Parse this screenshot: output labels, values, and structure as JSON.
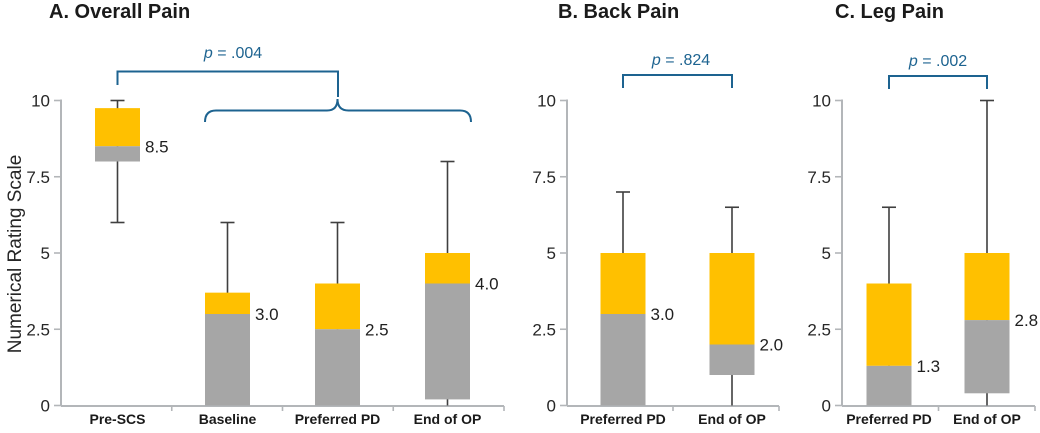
{
  "figure": {
    "y_axis_title": "Numerical Rating Scale",
    "y_ticks": [
      "10",
      "7.5",
      "5",
      "2.5",
      "0"
    ],
    "y_tick_values": [
      10,
      7.5,
      5,
      2.5,
      0
    ],
    "ylim": [
      0,
      10
    ]
  },
  "colors": {
    "box_upper": "#FFC000",
    "box_lower": "#A6A6A6",
    "whisker": "#3f3f3f",
    "axis": "#b3b6b9",
    "bracket": "#1d6390",
    "text": "#1f1f1f"
  },
  "chart_data": [
    {
      "type": "box",
      "panel_label": "A",
      "title": "A. Overall Pain",
      "p_text": {
        "var": "p",
        "rest": " = .004"
      },
      "categories": [
        "Pre-SCS",
        "Baseline",
        "Preferred PD",
        "End of OP"
      ],
      "ylabel": "Numerical Rating Scale",
      "ylim": [
        0,
        10
      ],
      "boxes": [
        {
          "category": "Pre-SCS",
          "whisker_low": 6.0,
          "box_low": 8.0,
          "median": 8.5,
          "box_high": 9.75,
          "whisker_high": 10.0,
          "median_label": "8.5"
        },
        {
          "category": "Baseline",
          "box_low": 0,
          "median": 3.0,
          "box_high": 3.7,
          "whisker_high": 6.0,
          "median_label": "3.0"
        },
        {
          "category": "Preferred PD",
          "box_low": 0,
          "median": 2.5,
          "box_high": 4.0,
          "whisker_high": 6.0,
          "median_label": "2.5"
        },
        {
          "category": "End of OP",
          "whisker_low": 0,
          "box_low": 0.2,
          "median": 4.0,
          "box_high": 5.0,
          "whisker_high": 8.0,
          "median_label": "4.0"
        }
      ]
    },
    {
      "type": "box",
      "panel_label": "B",
      "title": "B. Back Pain",
      "p_text": {
        "var": "p",
        "rest": " = .824"
      },
      "categories": [
        "Preferred PD",
        "End of OP"
      ],
      "ylim": [
        0,
        10
      ],
      "boxes": [
        {
          "category": "Preferred PD",
          "box_low": 0,
          "median": 3.0,
          "box_high": 5.0,
          "whisker_high": 7.0,
          "median_label": "3.0"
        },
        {
          "category": "End of OP",
          "whisker_low": 0,
          "box_low": 1.0,
          "median": 2.0,
          "box_high": 5.0,
          "whisker_high": 6.5,
          "median_label": "2.0"
        }
      ]
    },
    {
      "type": "box",
      "panel_label": "C",
      "title": "C. Leg Pain",
      "p_text": {
        "var": "p",
        "rest": " = .002"
      },
      "categories": [
        "Preferred PD",
        "End of OP"
      ],
      "ylim": [
        0,
        10
      ],
      "boxes": [
        {
          "category": "Preferred PD",
          "box_low": 0,
          "median": 1.3,
          "box_high": 4.0,
          "whisker_high": 6.5,
          "median_label": "1.3"
        },
        {
          "category": "End of OP",
          "whisker_low": 0,
          "box_low": 0.4,
          "median": 2.8,
          "box_high": 5.0,
          "whisker_high": 10.0,
          "median_label": "2.8"
        }
      ]
    }
  ]
}
